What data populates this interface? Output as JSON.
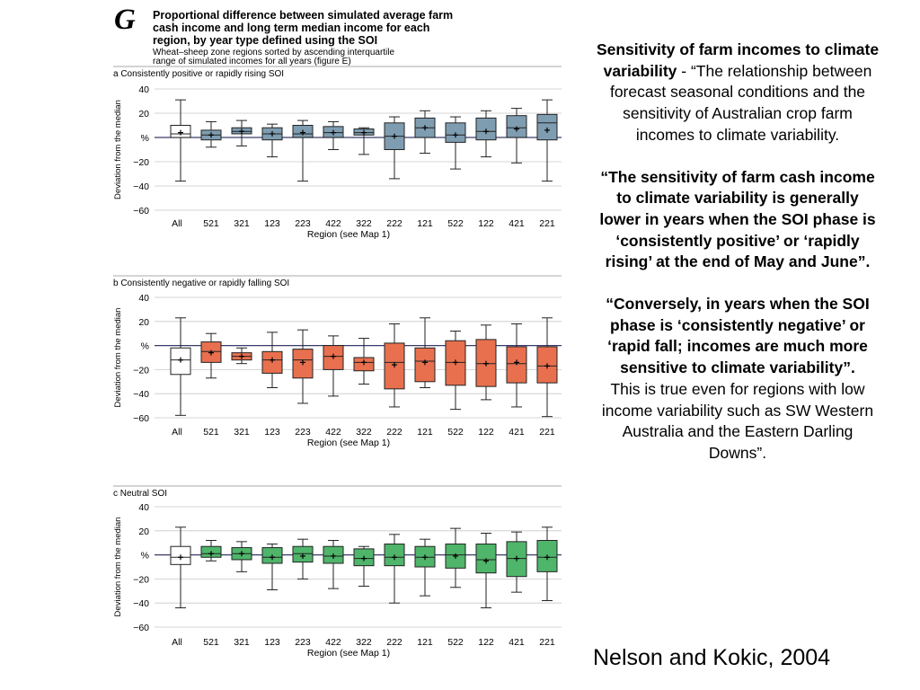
{
  "figure": {
    "letter": "G",
    "title_lines": [
      "Proportional difference between simulated average farm",
      "cash income and long term median income for each",
      "region, by year type defined using the SOI"
    ],
    "subtitle_lines": [
      "Wheat–sheep zone regions sorted by ascending interquartile",
      "range of simulated incomes for all years (figure E)"
    ]
  },
  "chart_data": [
    {
      "type": "box",
      "title": "a Consistently positive or rapidly rising SOI",
      "ylabel": "Deviation from the median",
      "xlabel": "Region (see Map 1)",
      "ylim": [
        -60,
        40
      ],
      "yticks": [
        "40",
        "20",
        "%",
        "−20",
        "−40",
        "−60"
      ],
      "fill": "#7f9db1",
      "categories": [
        "All",
        "521",
        "321",
        "123",
        "223",
        "422",
        "322",
        "222",
        "121",
        "522",
        "122",
        "421",
        "221"
      ],
      "boxes": [
        {
          "whisker_low": -36,
          "q1": 0,
          "median": 3,
          "q3": 10,
          "whisker_high": 31,
          "mean": 4
        },
        {
          "whisker_low": -8,
          "q1": -2,
          "median": 2,
          "q3": 6,
          "whisker_high": 13,
          "mean": 2
        },
        {
          "whisker_low": -7,
          "q1": 3,
          "median": 5,
          "q3": 8,
          "whisker_high": 14,
          "mean": 5
        },
        {
          "whisker_low": -16,
          "q1": -2,
          "median": 3,
          "q3": 8,
          "whisker_high": 11,
          "mean": 3
        },
        {
          "whisker_low": -36,
          "q1": 0,
          "median": 3,
          "q3": 10,
          "whisker_high": 14,
          "mean": 4
        },
        {
          "whisker_low": -10,
          "q1": 0,
          "median": 4,
          "q3": 9,
          "whisker_high": 13,
          "mean": 4
        },
        {
          "whisker_low": -14,
          "q1": 2,
          "median": 4,
          "q3": 7,
          "whisker_high": 8,
          "mean": 4
        },
        {
          "whisker_low": -34,
          "q1": -10,
          "median": 1,
          "q3": 12,
          "whisker_high": 17,
          "mean": 1
        },
        {
          "whisker_low": -13,
          "q1": 0,
          "median": 8,
          "q3": 16,
          "whisker_high": 22,
          "mean": 8
        },
        {
          "whisker_low": -26,
          "q1": -4,
          "median": 2,
          "q3": 12,
          "whisker_high": 17,
          "mean": 2
        },
        {
          "whisker_low": -16,
          "q1": -2,
          "median": 5,
          "q3": 16,
          "whisker_high": 22,
          "mean": 5
        },
        {
          "whisker_low": -21,
          "q1": 0,
          "median": 8,
          "q3": 18,
          "whisker_high": 24,
          "mean": 7
        },
        {
          "whisker_low": -36,
          "q1": -2,
          "median": 12,
          "q3": 19,
          "whisker_high": 31,
          "mean": 6
        }
      ]
    },
    {
      "type": "box",
      "title": "b Consistently negative or rapidly falling SOI",
      "ylabel": "Deviation from the median",
      "xlabel": "Region (see Map 1)",
      "ylim": [
        -60,
        40
      ],
      "yticks": [
        "40",
        "20",
        "%",
        "−20",
        "−40",
        "−60"
      ],
      "fill": "#e8704f",
      "categories": [
        "All",
        "521",
        "321",
        "123",
        "223",
        "422",
        "322",
        "222",
        "121",
        "522",
        "122",
        "421",
        "221"
      ],
      "boxes": [
        {
          "whisker_low": -58,
          "q1": -24,
          "median": -12,
          "q3": -2,
          "whisker_high": 23,
          "mean": -12
        },
        {
          "whisker_low": -27,
          "q1": -14,
          "median": -5,
          "q3": 3,
          "whisker_high": 10,
          "mean": -6
        },
        {
          "whisker_low": -15,
          "q1": -12,
          "median": -9,
          "q3": -6,
          "whisker_high": -2,
          "mean": -9
        },
        {
          "whisker_low": -35,
          "q1": -23,
          "median": -12,
          "q3": -5,
          "whisker_high": 11,
          "mean": -12
        },
        {
          "whisker_low": -48,
          "q1": -27,
          "median": -12,
          "q3": -3,
          "whisker_high": 13,
          "mean": -14
        },
        {
          "whisker_low": -42,
          "q1": -20,
          "median": -9,
          "q3": 0,
          "whisker_high": 8,
          "mean": -9
        },
        {
          "whisker_low": -32,
          "q1": -21,
          "median": -14,
          "q3": -10,
          "whisker_high": 6,
          "mean": -14
        },
        {
          "whisker_low": -51,
          "q1": -36,
          "median": -14,
          "q3": 2,
          "whisker_high": 18,
          "mean": -16
        },
        {
          "whisker_low": -35,
          "q1": -30,
          "median": -13,
          "q3": -2,
          "whisker_high": 23,
          "mean": -14
        },
        {
          "whisker_low": -53,
          "q1": -33,
          "median": -14,
          "q3": 4,
          "whisker_high": 12,
          "mean": -14
        },
        {
          "whisker_low": -45,
          "q1": -34,
          "median": -15,
          "q3": 5,
          "whisker_high": 17,
          "mean": -15
        },
        {
          "whisker_low": -51,
          "q1": -31,
          "median": -15,
          "q3": -1,
          "whisker_high": 18,
          "mean": -14
        },
        {
          "whisker_low": -59,
          "q1": -31,
          "median": -17,
          "q3": -1,
          "whisker_high": 23,
          "mean": -17
        }
      ]
    },
    {
      "type": "box",
      "title": "c Neutral SOI",
      "ylabel": "Deviation from the median",
      "xlabel": "Region (see Map 1)",
      "ylim": [
        -60,
        40
      ],
      "yticks": [
        "40",
        "20",
        "%",
        "−20",
        "−40",
        "−60"
      ],
      "fill": "#4fb56a",
      "categories": [
        "All",
        "521",
        "321",
        "123",
        "223",
        "422",
        "322",
        "222",
        "121",
        "522",
        "122",
        "421",
        "221"
      ],
      "boxes": [
        {
          "whisker_low": -44,
          "q1": -8,
          "median": -2,
          "q3": 7,
          "whisker_high": 23,
          "mean": -2
        },
        {
          "whisker_low": -5,
          "q1": -2,
          "median": 1,
          "q3": 7,
          "whisker_high": 12,
          "mean": 1
        },
        {
          "whisker_low": -14,
          "q1": -4,
          "median": 1,
          "q3": 6,
          "whisker_high": 11,
          "mean": 1
        },
        {
          "whisker_low": -29,
          "q1": -7,
          "median": -2,
          "q3": 6,
          "whisker_high": 9,
          "mean": -2
        },
        {
          "whisker_low": -20,
          "q1": -6,
          "median": 1,
          "q3": 7,
          "whisker_high": 13,
          "mean": -1
        },
        {
          "whisker_low": -28,
          "q1": -7,
          "median": -1,
          "q3": 7,
          "whisker_high": 12,
          "mean": -1
        },
        {
          "whisker_low": -26,
          "q1": -9,
          "median": -3,
          "q3": 5,
          "whisker_high": 7,
          "mean": -3
        },
        {
          "whisker_low": -40,
          "q1": -9,
          "median": -2,
          "q3": 9,
          "whisker_high": 17,
          "mean": -2
        },
        {
          "whisker_low": -34,
          "q1": -10,
          "median": -2,
          "q3": 7,
          "whisker_high": 13,
          "mean": -2
        },
        {
          "whisker_low": -27,
          "q1": -11,
          "median": 0,
          "q3": 9,
          "whisker_high": 22,
          "mean": -1
        },
        {
          "whisker_low": -44,
          "q1": -15,
          "median": -4,
          "q3": 9,
          "whisker_high": 18,
          "mean": -5
        },
        {
          "whisker_low": -31,
          "q1": -18,
          "median": -3,
          "q3": 11,
          "whisker_high": 19,
          "mean": -3
        },
        {
          "whisker_low": -38,
          "q1": -14,
          "median": -2,
          "q3": 12,
          "whisker_high": 23,
          "mean": -2
        }
      ]
    }
  ],
  "side_text": {
    "heading": "Sensitivity of farm incomes to climate variability",
    "heading_rest": " - “The relationship between forecast seasonal conditions and the sensitivity of Australian crop farm incomes to climate variability.",
    "quote1": "“The sensitivity of farm cash income to climate variability is generally lower in years when the SOI phase is ‘consistently positive’ or ‘rapidly rising’ at the end of May and June”.",
    "quote2": "“Conversely, in years when the SOI phase is ‘consistently negative’ or ‘rapid fall; incomes are much more sensitive to climate variability”.",
    "quote2_rest": "This is true even for regions with low income variability such as SW Western Australia and the Eastern Darling Downs”."
  },
  "citation": "Nelson and Kokic, 2004"
}
